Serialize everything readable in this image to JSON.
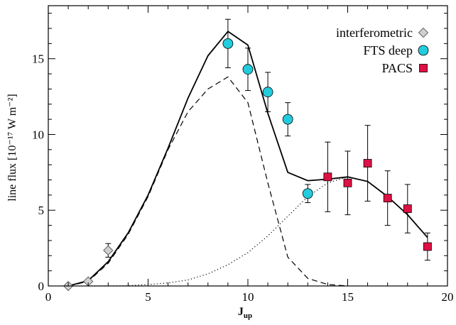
{
  "chart_data": {
    "type": "scatter",
    "xlabel_main": "J",
    "xlabel_sub": "up",
    "ylabel": "line flux [10⁻¹⁷ W m⁻²]",
    "xlim": [
      0,
      20
    ],
    "ylim": [
      0,
      18.5
    ],
    "xticks": [
      0,
      5,
      10,
      15,
      20
    ],
    "yticks": [
      0,
      5,
      10,
      15
    ],
    "legend_position": "top-right",
    "series": [
      {
        "name": "interferometric",
        "kind": "points",
        "marker": "diamond",
        "color": "#d0d0d0",
        "points": [
          {
            "x": 1,
            "y": 0.0,
            "err": 0
          },
          {
            "x": 2,
            "y": 0.3,
            "err": 0
          },
          {
            "x": 3,
            "y": 2.35,
            "err": 0.45
          }
        ]
      },
      {
        "name": "FTS deep",
        "kind": "points",
        "marker": "circle",
        "color": "#22ccdd",
        "points": [
          {
            "x": 9,
            "y": 16.0,
            "err": 1.6
          },
          {
            "x": 10,
            "y": 14.3,
            "err": 1.4
          },
          {
            "x": 11,
            "y": 12.8,
            "err": 1.3
          },
          {
            "x": 12,
            "y": 11.0,
            "err": 1.1
          },
          {
            "x": 13,
            "y": 6.1,
            "err": 0.6
          }
        ]
      },
      {
        "name": "PACS",
        "kind": "points",
        "marker": "square",
        "color": "#dd1144",
        "points": [
          {
            "x": 14,
            "y": 7.2,
            "err": 2.3
          },
          {
            "x": 15,
            "y": 6.8,
            "err": 2.1
          },
          {
            "x": 16,
            "y": 8.1,
            "err": 2.5
          },
          {
            "x": 17,
            "y": 5.8,
            "err": 1.8
          },
          {
            "x": 18,
            "y": 5.1,
            "err": 1.6
          },
          {
            "x": 19,
            "y": 2.6,
            "err": 0.9
          }
        ]
      }
    ],
    "curves": [
      {
        "style": "solid",
        "x": [
          1,
          2,
          3,
          4,
          5,
          6,
          7,
          8,
          9,
          10,
          11,
          12,
          13,
          14,
          15,
          16,
          17,
          18,
          19
        ],
        "y": [
          0.0,
          0.35,
          1.6,
          3.5,
          6.0,
          9.1,
          12.4,
          15.2,
          16.8,
          15.9,
          11.4,
          7.5,
          6.95,
          7.05,
          7.2,
          6.9,
          5.9,
          4.7,
          3.2
        ]
      },
      {
        "style": "dashed",
        "x": [
          1,
          2,
          3,
          4,
          5,
          6,
          7,
          8,
          9,
          10,
          11,
          12,
          13,
          14,
          15
        ],
        "y": [
          0.0,
          0.3,
          1.5,
          3.4,
          5.9,
          9.0,
          11.5,
          13.0,
          13.8,
          12.1,
          6.8,
          1.9,
          0.5,
          0.1,
          0.0
        ]
      },
      {
        "style": "dotted",
        "x": [
          2,
          3,
          4,
          5,
          6,
          7,
          8,
          9,
          10,
          11,
          12,
          13,
          14,
          15,
          16,
          17,
          18,
          19
        ],
        "y": [
          0.0,
          0.0,
          0.02,
          0.1,
          0.2,
          0.4,
          0.8,
          1.4,
          2.2,
          3.3,
          4.6,
          5.9,
          6.8,
          7.2,
          6.9,
          5.9,
          4.7,
          3.2
        ]
      }
    ]
  }
}
